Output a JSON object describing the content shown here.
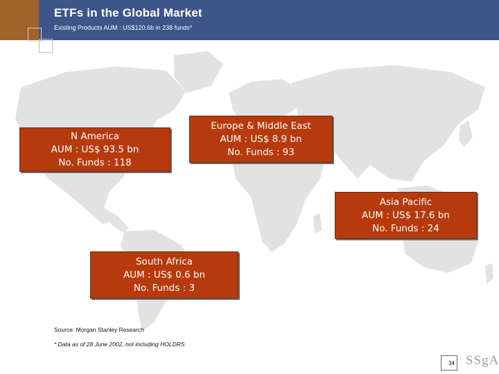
{
  "header": {
    "title": "ETFs in the Global Market",
    "subtitle": "Existing Products AUM : US$120.6b in 238 funds*"
  },
  "regions": [
    {
      "name": "N America",
      "aum": "AUM : US$ 93.5 bn",
      "funds": "No. Funds : 118"
    },
    {
      "name": "Europe & Middle East",
      "aum": "AUM : US$ 8.9 bn",
      "funds": "No. Funds : 93"
    },
    {
      "name": "Asia Pacific",
      "aum": "AUM : US$ 17.6 bn",
      "funds": "No. Funds : 24"
    },
    {
      "name": "South Africa",
      "aum": "AUM : US$ 0.6 bn",
      "funds": "No. Funds : 3"
    }
  ],
  "footer": {
    "source": "Source: Morgan Stanley Research",
    "footnote": "* Data as of 28 June 2002, not including HOLDRS",
    "page_number": "34",
    "logo": "SSgA"
  },
  "colors": {
    "header": "#3d5588",
    "accent": "#a0632a",
    "box": "#b63a0c",
    "map": "#e2e2e2"
  }
}
